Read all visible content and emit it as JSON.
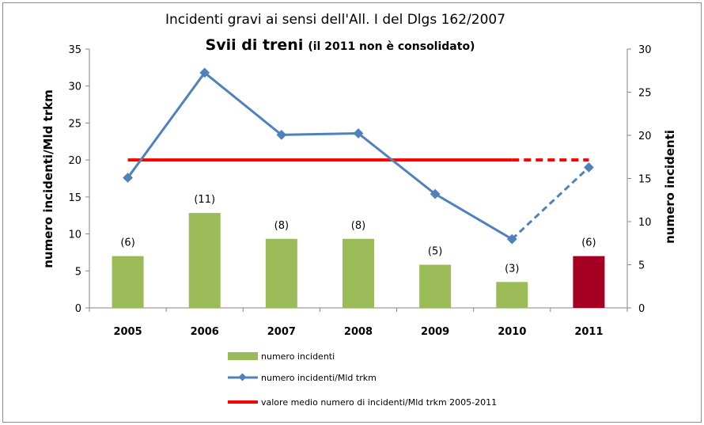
{
  "chart_data": {
    "type": "bar+line",
    "title": "Incidenti gravi ai sensi dell'All. I del Dlgs 162/2007",
    "subtitle_main": "Svii di treni",
    "subtitle_note": "(il  2011 non è consolidato)",
    "categories": [
      "2005",
      "2006",
      "2007",
      "2008",
      "2009",
      "2010",
      "2011"
    ],
    "series": [
      {
        "name": "numero incidenti",
        "kind": "bar",
        "axis": "right",
        "values": [
          6,
          11,
          8,
          8,
          5,
          3,
          6
        ],
        "data_labels": [
          "(6)",
          "(11)",
          "(8)",
          "(8)",
          "(5)",
          "(3)",
          "(6)"
        ],
        "color": "#9bbb59",
        "highlight_last_color": "#a50021"
      },
      {
        "name": "numero incidenti/Mld trkm",
        "kind": "line",
        "axis": "left",
        "values": [
          17.6,
          31.8,
          23.4,
          23.6,
          15.4,
          9.3,
          19.0
        ],
        "dashed_from_index": 5,
        "color": "#4f81bd"
      },
      {
        "name": "valore medio numero di incidenti/Mld trkm 2005-2011",
        "kind": "line",
        "axis": "left",
        "values": [
          20.0,
          20.0,
          20.0,
          20.0,
          20.0,
          20.0,
          20.0
        ],
        "dashed_from_index": 5,
        "color": "#ff0000"
      }
    ],
    "ylabel": "numero incidenti/Mld trkm",
    "ylabel_right": "numero incidenti",
    "ylim": [
      0,
      35
    ],
    "ylim_right": [
      0,
      30
    ],
    "yticks": [
      "0",
      "5",
      "10",
      "15",
      "20",
      "25",
      "30",
      "35"
    ],
    "yticks_right": [
      "0",
      "5",
      "10",
      "15",
      "20",
      "25",
      "30"
    ],
    "legend_position": "bottom"
  }
}
